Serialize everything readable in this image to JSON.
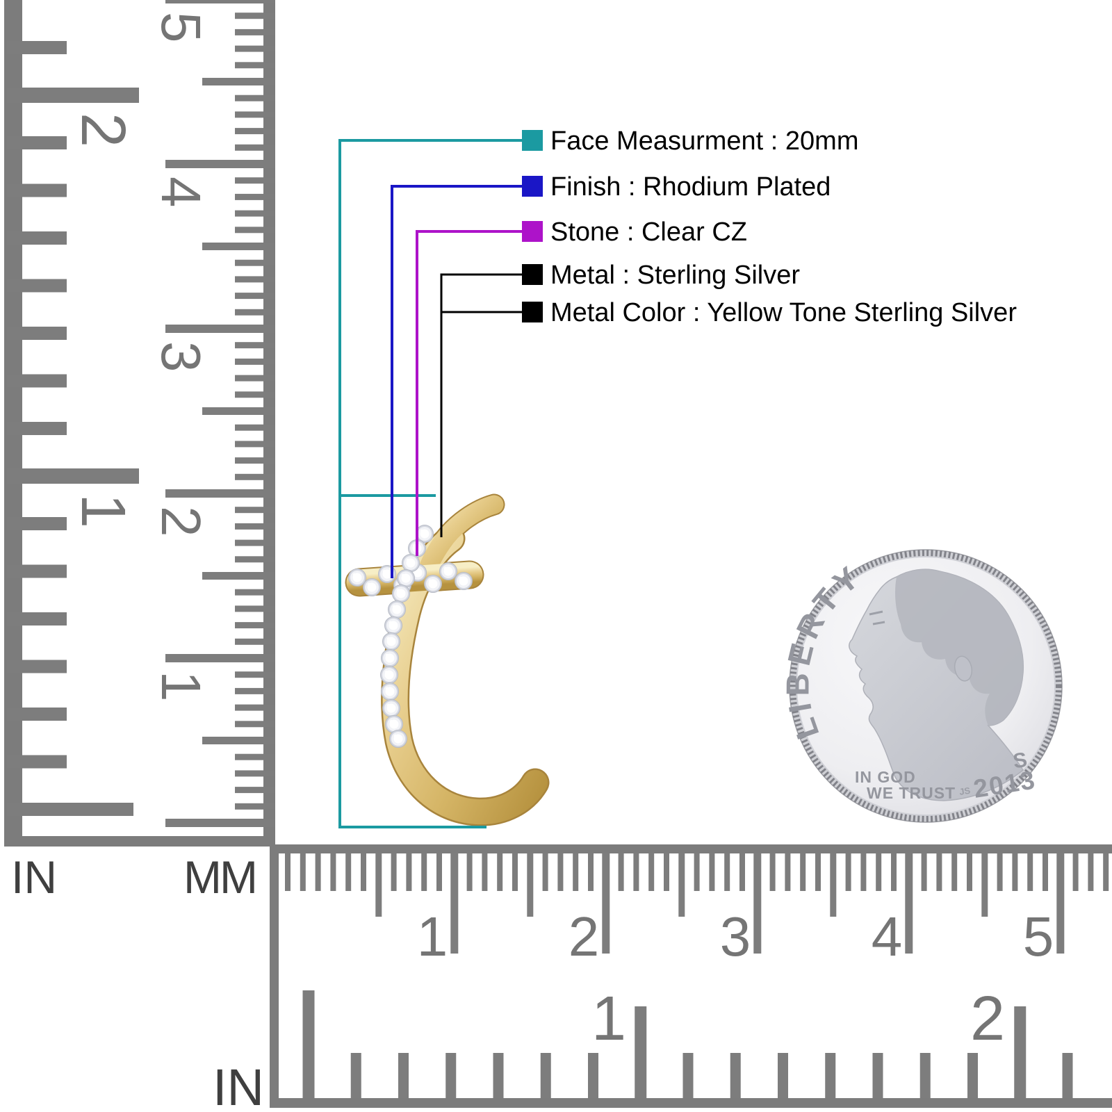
{
  "annotations": {
    "items": [
      {
        "label": "Face Measurment : 20mm",
        "color": "#1b9aa1"
      },
      {
        "label": "Finish : Rhodium Plated",
        "color": "#1a16c6"
      },
      {
        "label": "Stone : Clear CZ",
        "color": "#ad13c9"
      },
      {
        "label": "Metal : Sterling Silver",
        "color": "#000000"
      },
      {
        "label": "Metal Color : Yellow Tone Sterling Silver",
        "color": "#000000"
      }
    ]
  },
  "left_ruler": {
    "in_label": "IN",
    "mm_label": "MM",
    "in_numbers": [
      "1",
      "2"
    ],
    "mm_numbers": [
      "1",
      "2",
      "3",
      "4",
      "5"
    ]
  },
  "bottom_ruler": {
    "in_label": "IN",
    "in_numbers": [
      "1",
      "2"
    ],
    "mm_numbers": [
      "1",
      "2",
      "3",
      "4",
      "5"
    ]
  },
  "coin": {
    "legend": "LIBERTY",
    "motto1": "IN GOD",
    "motto2": "WE TRUST",
    "mint_mark": "S",
    "year": "2013",
    "initials": "JS"
  }
}
